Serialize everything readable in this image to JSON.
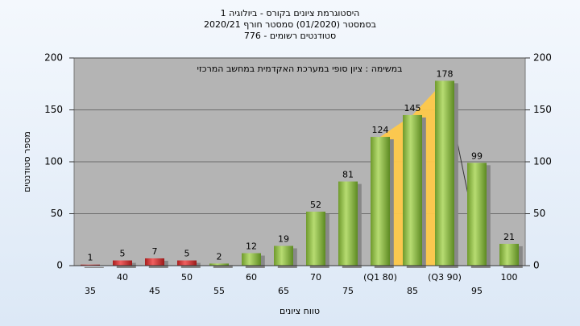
{
  "chart_data": {
    "type": "bar",
    "title": [
      "היסטוגרמת ציונים בקורס - ביולוגיה 1",
      "בסמסטר  (01/2020)  סמסטר חורף 2020/21",
      "סטודנטים רשומים - 776"
    ],
    "annotation": "במשימה : ציון סופי במערכת האקדמית במחשב המרכזי",
    "x_label": "טווח ציונים",
    "y_label": "מספר סטודנטים",
    "categories": [
      "35",
      "40",
      "45",
      "50",
      "55",
      "60",
      "65",
      "70",
      "75",
      "(Q1 80)",
      "85",
      "(Q3 90)",
      "95",
      "100"
    ],
    "values": [
      1,
      5,
      7,
      5,
      2,
      12,
      19,
      52,
      81,
      124,
      145,
      178,
      99,
      21
    ],
    "colors": [
      "red",
      "red",
      "red",
      "red",
      "green",
      "green",
      "green",
      "green",
      "green",
      "green",
      "green",
      "green",
      "green",
      "green"
    ],
    "ylim": [
      0,
      200
    ],
    "yticks": [
      0,
      50,
      100,
      150,
      200
    ],
    "y2lim": [
      0,
      200
    ],
    "y2ticks": [
      0,
      50,
      100,
      150,
      200
    ],
    "grid": true
  }
}
